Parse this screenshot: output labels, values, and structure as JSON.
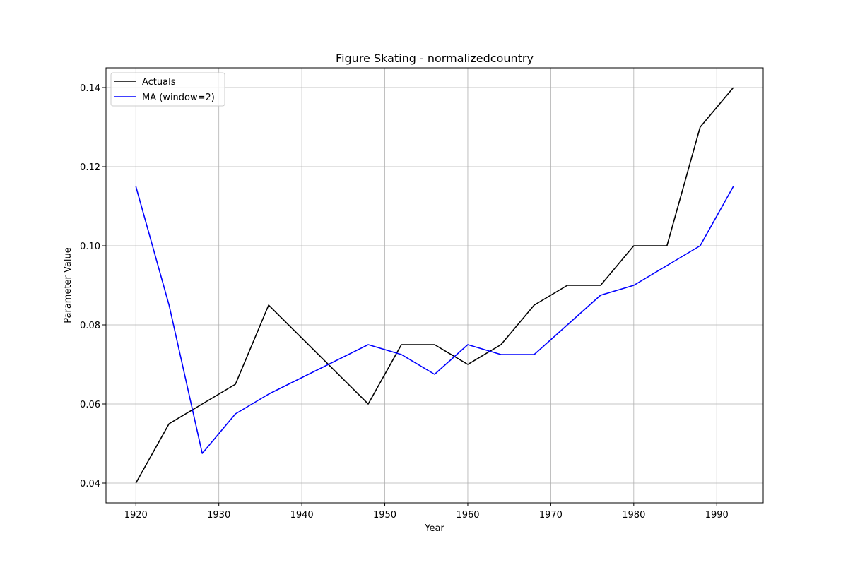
{
  "chart_data": {
    "type": "line",
    "title": "Figure Skating - normalizedcountry",
    "xlabel": "Year",
    "ylabel": "Parameter Value",
    "xlim": [
      1916.4,
      1995.6
    ],
    "ylim": [
      0.035,
      0.145
    ],
    "x_ticks": [
      1920,
      1930,
      1940,
      1950,
      1960,
      1970,
      1980,
      1990
    ],
    "y_ticks": [
      0.04,
      0.06,
      0.08,
      0.1,
      0.12,
      0.14
    ],
    "y_tick_labels": [
      "0.04",
      "0.06",
      "0.08",
      "0.10",
      "0.12",
      "0.14"
    ],
    "grid": true,
    "legend_position": "top-left",
    "x": [
      1920,
      1924,
      1928,
      1932,
      1936,
      1948,
      1952,
      1956,
      1960,
      1964,
      1968,
      1972,
      1976,
      1980,
      1984,
      1988,
      1992
    ],
    "series": [
      {
        "name": "Actuals",
        "color": "#000000",
        "values": [
          0.04,
          0.055,
          0.06,
          0.065,
          0.085,
          0.06,
          0.075,
          0.075,
          0.07,
          0.075,
          0.085,
          0.09,
          0.09,
          0.1,
          0.1,
          0.13,
          0.14
        ]
      },
      {
        "name": "MA (window=2)",
        "color": "#0000ff",
        "values": [
          0.115,
          0.085,
          0.0475,
          0.0575,
          0.0625,
          0.075,
          0.0725,
          0.0675,
          0.075,
          0.0725,
          0.0725,
          0.08,
          0.0875,
          0.09,
          0.095,
          0.1,
          0.115
        ]
      }
    ]
  }
}
